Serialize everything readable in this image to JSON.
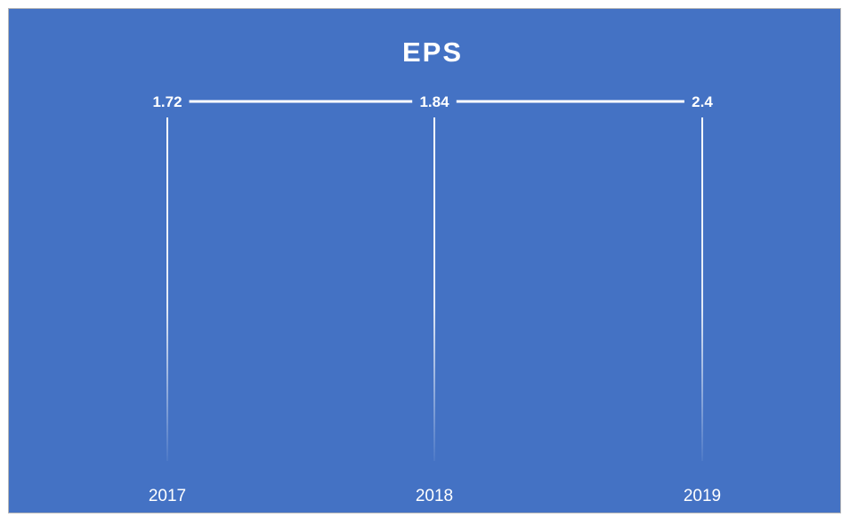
{
  "chart_data": {
    "type": "line",
    "title": "EPS",
    "categories": [
      "2017",
      "2018",
      "2019"
    ],
    "values": [
      1.72,
      1.84,
      2.4
    ],
    "data_labels": [
      "1.72",
      "1.84",
      "2.4"
    ],
    "xlabel": "",
    "ylabel": "",
    "grid": false,
    "legend": "none",
    "axis_ticks_visible": [
      "x"
    ],
    "style": {
      "background": "#4472C4",
      "line_color": "#FFFFFF",
      "text_color": "#FFFFFF"
    }
  }
}
